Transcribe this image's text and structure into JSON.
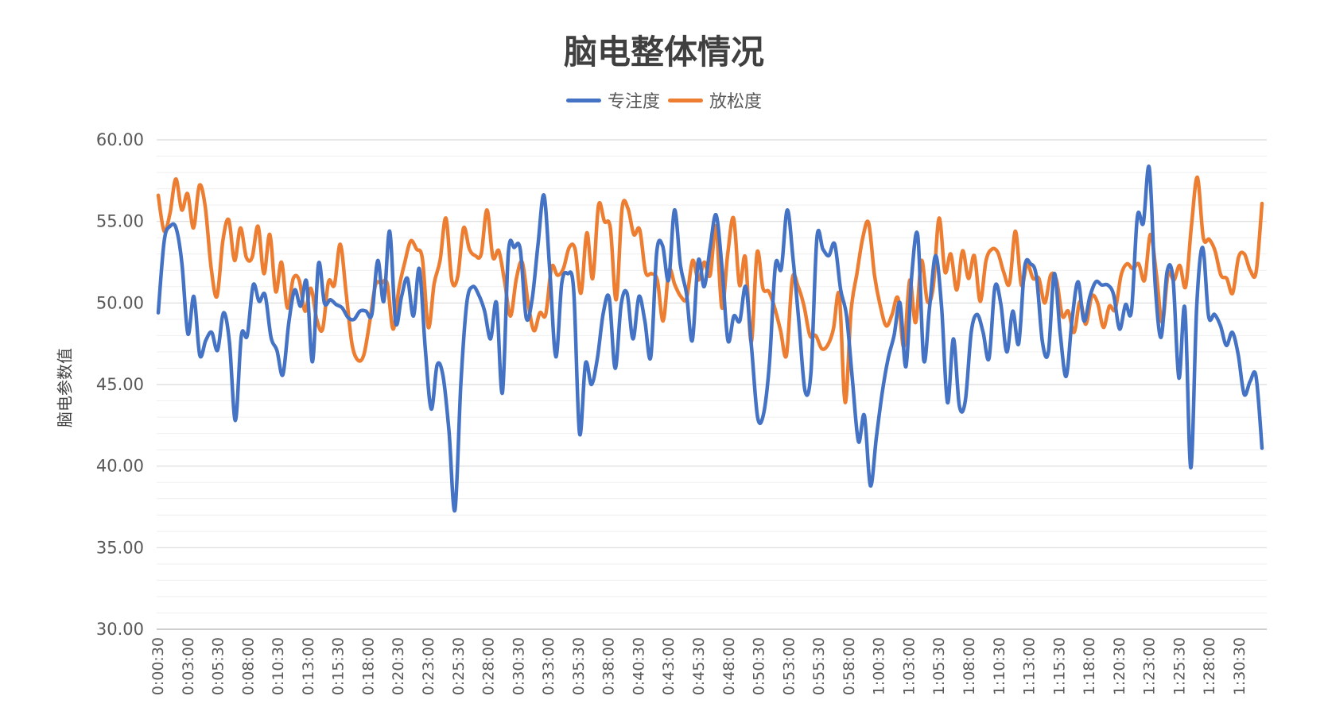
{
  "chart_data": {
    "type": "line",
    "title": "脑电整体情况",
    "ylabel": "脑电参数值",
    "xlabel": "",
    "ylim": [
      30,
      60
    ],
    "y_ticks": [
      "30.00",
      "35.00",
      "40.00",
      "45.00",
      "50.00",
      "55.00",
      "60.00"
    ],
    "x_ticks": [
      "0:00:30",
      "0:03:00",
      "0:05:30",
      "0:08:00",
      "0:10:30",
      "0:13:00",
      "0:15:30",
      "0:18:00",
      "0:20:30",
      "0:23:00",
      "0:25:30",
      "0:28:00",
      "0:30:30",
      "0:33:00",
      "0:35:30",
      "0:38:00",
      "0:40:30",
      "0:43:00",
      "0:45:30",
      "0:48:00",
      "0:50:30",
      "0:53:00",
      "0:55:30",
      "0:58:00",
      "1:00:30",
      "1:03:00",
      "1:05:30",
      "1:08:00",
      "1:10:30",
      "1:13:00",
      "1:15:30",
      "1:18:00",
      "1:20:30",
      "1:23:00",
      "1:25:30",
      "1:28:00",
      "1:30:30"
    ],
    "legend_position": "top",
    "grid": true,
    "series": [
      {
        "name": "专注度",
        "color": "#4472C4",
        "values": [
          49.4,
          53.8,
          54.7,
          54.6,
          52.4,
          48.1,
          50.4,
          46.8,
          47.7,
          48.2,
          47.1,
          49.4,
          47.6,
          42.8,
          48.0,
          48.0,
          51.1,
          50.1,
          50.5,
          47.9,
          47.1,
          45.6,
          48.8,
          50.8,
          49.8,
          51.3,
          46.4,
          52.4,
          50.0,
          50.2,
          49.9,
          49.7,
          49.1,
          49.0,
          49.5,
          49.5,
          49.3,
          52.6,
          50.1,
          54.4,
          48.8,
          50.4,
          51.5,
          49.2,
          52.1,
          47.2,
          43.5,
          46.2,
          45.5,
          42.1,
          37.3,
          45.1,
          50.0,
          51.0,
          50.5,
          49.5,
          47.8,
          50.0,
          44.5,
          53.1,
          53.4,
          53.3,
          49.1,
          50.2,
          53.6,
          56.6,
          51.9,
          46.7,
          51.2,
          51.8,
          50.8,
          42.0,
          46.3,
          45.0,
          46.6,
          49.4,
          50.3,
          46.0,
          49.9,
          50.6,
          47.8,
          50.4,
          48.9,
          46.7,
          53.1,
          53.5,
          51.4,
          55.7,
          52.3,
          50.6,
          47.7,
          52.6,
          51.0,
          53.4,
          55.4,
          52.2,
          47.7,
          49.2,
          48.9,
          51.0,
          47.2,
          43.0,
          43.2,
          46.3,
          52.3,
          52.1,
          55.7,
          52.6,
          48.7,
          44.6,
          45.8,
          54.0,
          53.3,
          52.9,
          53.6,
          50.8,
          49.2,
          45.2,
          41.5,
          43.1,
          38.8,
          41.7,
          44.5,
          46.6,
          48.0,
          50.0,
          46.1,
          51.8,
          54.1,
          46.5,
          49.8,
          52.9,
          49.8,
          43.9,
          47.8,
          43.7,
          44.0,
          48.2,
          49.3,
          48.2,
          46.6,
          51.0,
          49.9,
          47.0,
          49.5,
          47.5,
          52.2,
          52.4,
          51.6,
          47.6,
          47.0,
          51.8,
          48.1,
          45.5,
          49.0,
          51.3,
          48.9,
          50.4,
          51.3,
          51.1,
          51.1,
          50.5,
          48.4,
          49.9,
          49.5,
          55.3,
          54.9,
          58.3,
          51.1,
          47.9,
          51.9,
          51.5,
          45.4,
          49.7,
          39.9,
          49.8,
          53.4,
          49.2,
          49.3,
          48.6,
          47.4,
          48.2,
          46.8,
          44.4,
          45.2,
          45.5,
          41.1
        ]
      },
      {
        "name": "放松度",
        "color": "#ED7D31",
        "values": [
          56.6,
          54.4,
          55.5,
          57.6,
          55.7,
          56.7,
          54.6,
          57.2,
          55.9,
          52.2,
          50.4,
          53.8,
          55.1,
          52.6,
          54.6,
          52.8,
          52.8,
          54.7,
          51.8,
          54.2,
          50.7,
          52.5,
          49.7,
          51.5,
          51.4,
          49.5,
          50.9,
          49.0,
          48.4,
          51.3,
          51.1,
          53.6,
          50.6,
          47.5,
          46.5,
          46.8,
          48.8,
          51.1,
          51.2,
          51.2,
          48.4,
          50.9,
          52.5,
          53.8,
          53.3,
          52.7,
          48.5,
          51.2,
          52.6,
          55.2,
          51.4,
          51.6,
          54.6,
          53.3,
          52.9,
          53.0,
          55.7,
          52.8,
          53.2,
          51.3,
          49.2,
          51.5,
          52.5,
          50.0,
          48.3,
          49.4,
          49.3,
          52.2,
          51.7,
          52.1,
          53.4,
          53.3,
          50.6,
          54.3,
          51.5,
          56.0,
          55.0,
          54.6,
          50.2,
          55.8,
          55.8,
          54.2,
          54.5,
          51.9,
          51.8,
          51.4,
          48.9,
          52.0,
          51.1,
          50.4,
          50.3,
          52.6,
          51.4,
          52.5,
          51.7,
          54.7,
          49.7,
          53.0,
          55.2,
          51.1,
          52.8,
          47.6,
          53.1,
          50.9,
          50.7,
          49.7,
          48.3,
          46.8,
          51.5,
          51.0,
          49.8,
          48.0,
          48.0,
          47.2,
          47.4,
          48.4,
          50.5,
          43.9,
          49.5,
          51.8,
          54.0,
          54.9,
          51.7,
          49.8,
          48.6,
          49.3,
          50.3,
          47.3,
          51.4,
          48.8,
          52.6,
          50.1,
          51.0,
          55.2,
          51.9,
          53.0,
          50.8,
          53.2,
          51.5,
          52.9,
          50.1,
          52.6,
          53.3,
          53.1,
          51.9,
          51.2,
          54.4,
          51.1,
          52.4,
          51.5,
          51.5,
          50.0,
          51.7,
          51.4,
          49.2,
          49.5,
          48.2,
          50.1,
          48.7,
          50.4,
          50.0,
          48.5,
          49.8,
          49.6,
          51.7,
          52.4,
          52.1,
          52.4,
          51.4,
          54.2,
          51.8,
          48.8,
          51.8,
          51.4,
          52.3,
          51.0,
          54.8,
          57.7,
          54.0,
          53.9,
          53.2,
          51.7,
          51.5,
          50.6,
          52.8,
          53.0,
          52.0,
          51.9,
          56.1
        ]
      }
    ]
  }
}
